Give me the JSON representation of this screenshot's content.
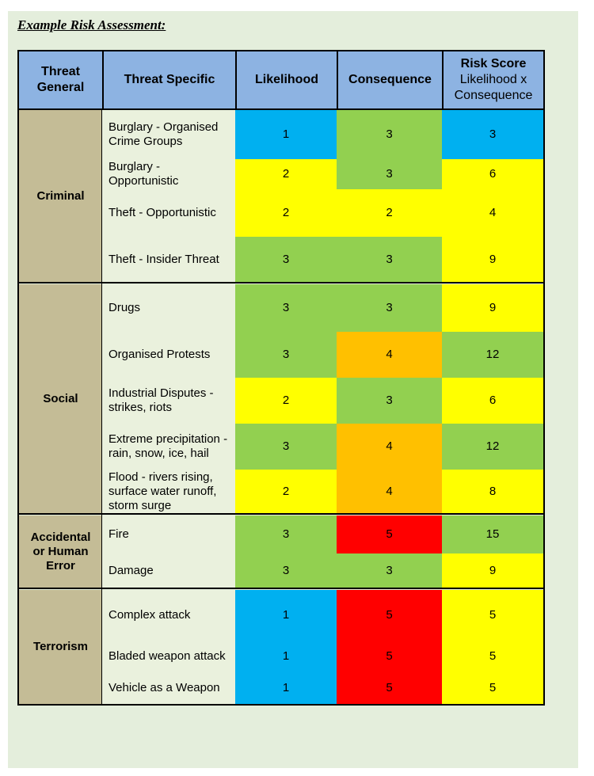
{
  "document": {
    "title": "Example Risk Assessment:"
  },
  "colors": {
    "header": "#8db3e2",
    "threat_general": "#c4bc96",
    "threat_specific": "#eaf1dd",
    "score_1": "#00b0f0",
    "score_2_or_low": "#ffff00",
    "score_3_or_mid": "#92d050",
    "score_4": "#ffc000",
    "score_5": "#ff0000"
  },
  "table": {
    "headers": {
      "threat_general": "Threat General",
      "threat_specific": "Threat Specific",
      "likelihood": "Likelihood",
      "consequence": "Consequence",
      "risk_score": "Risk Score",
      "risk_score_sub": "Likelihood x Consequence"
    },
    "groups": [
      {
        "name": "Criminal",
        "rows": [
          {
            "threat": "Burglary - Organised Crime Groups",
            "likelihood": "1",
            "consequence": "3",
            "risk": "3"
          },
          {
            "threat": "Burglary - Opportunistic",
            "likelihood": "2",
            "consequence": "3",
            "risk": "6"
          },
          {
            "threat": "Theft - Opportunistic",
            "likelihood": "2",
            "consequence": "2",
            "risk": "4"
          },
          {
            "threat": "Theft - Insider Threat",
            "likelihood": "3",
            "consequence": "3",
            "risk": "9"
          }
        ]
      },
      {
        "name": "Social",
        "rows": [
          {
            "threat": "Drugs",
            "likelihood": "3",
            "consequence": "3",
            "risk": "9"
          },
          {
            "threat": "Organised Protests",
            "likelihood": "3",
            "consequence": "4",
            "risk": "12"
          },
          {
            "threat": "Industrial Disputes - strikes, riots",
            "likelihood": "2",
            "consequence": "3",
            "risk": "6"
          },
          {
            "threat": "Extreme precipitation - rain, snow, ice, hail",
            "likelihood": "3",
            "consequence": "4",
            "risk": "12"
          },
          {
            "threat": "Flood - rivers rising, surface water runoff, storm surge",
            "likelihood": "2",
            "consequence": "4",
            "risk": "8"
          }
        ]
      },
      {
        "name": "Accidental or Human Error",
        "rows": [
          {
            "threat": "Fire",
            "likelihood": "3",
            "consequence": "5",
            "risk": "15"
          },
          {
            "threat": "Damage",
            "likelihood": "3",
            "consequence": "3",
            "risk": "9"
          }
        ]
      },
      {
        "name": "Terrorism",
        "rows": [
          {
            "threat": "Complex attack",
            "likelihood": "1",
            "consequence": "5",
            "risk": "5"
          },
          {
            "threat": "Bladed weapon attack",
            "likelihood": "1",
            "consequence": "5",
            "risk": "5"
          },
          {
            "threat": "Vehicle as a Weapon",
            "likelihood": "1",
            "consequence": "5",
            "risk": "5"
          }
        ]
      }
    ]
  }
}
